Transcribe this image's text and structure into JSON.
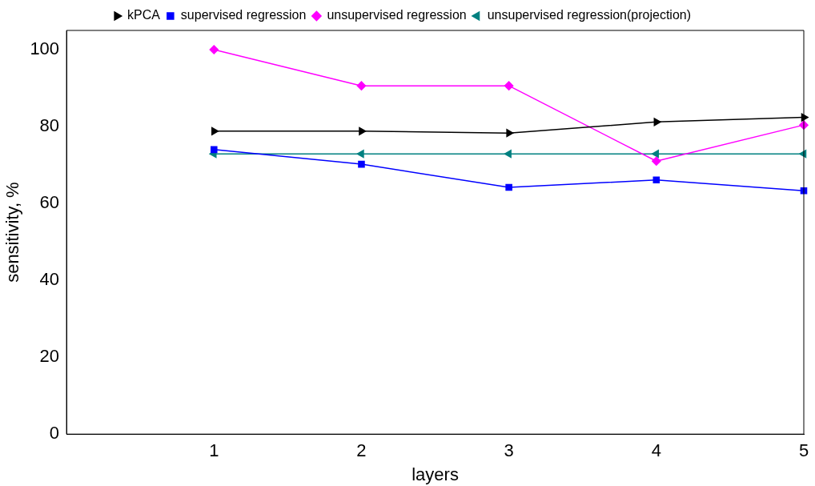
{
  "chart_data": {
    "type": "line",
    "xlabel": "layers",
    "ylabel": "sensitivity, %",
    "x": [
      1,
      2,
      3,
      4,
      5
    ],
    "series": [
      {
        "name": "kPCA",
        "color": "#000000",
        "marker": "triangle-right",
        "values": [
          78.8,
          78.8,
          78.3,
          81.2,
          82.4
        ]
      },
      {
        "name": "supervised regression",
        "color": "#0000ff",
        "marker": "square",
        "values": [
          74,
          70.2,
          64.2,
          66.1,
          63.3
        ]
      },
      {
        "name": "unsupervised regression",
        "color": "#ff00ff",
        "marker": "diamond",
        "values": [
          100,
          90.6,
          90.6,
          71,
          80.4
        ]
      },
      {
        "name": "unsupervised regression(projection)",
        "color": "#008080",
        "marker": "triangle-left",
        "values": [
          72.9,
          72.9,
          72.9,
          72.9,
          72.9
        ]
      }
    ],
    "xlim": [
      0,
      5
    ],
    "xticks": [
      1,
      2,
      3,
      4,
      5
    ],
    "ylim": [
      0,
      105
    ],
    "yticks": [
      0,
      20,
      40,
      60,
      80,
      100
    ],
    "grid": false,
    "legend": "top",
    "line_style": "solid"
  }
}
